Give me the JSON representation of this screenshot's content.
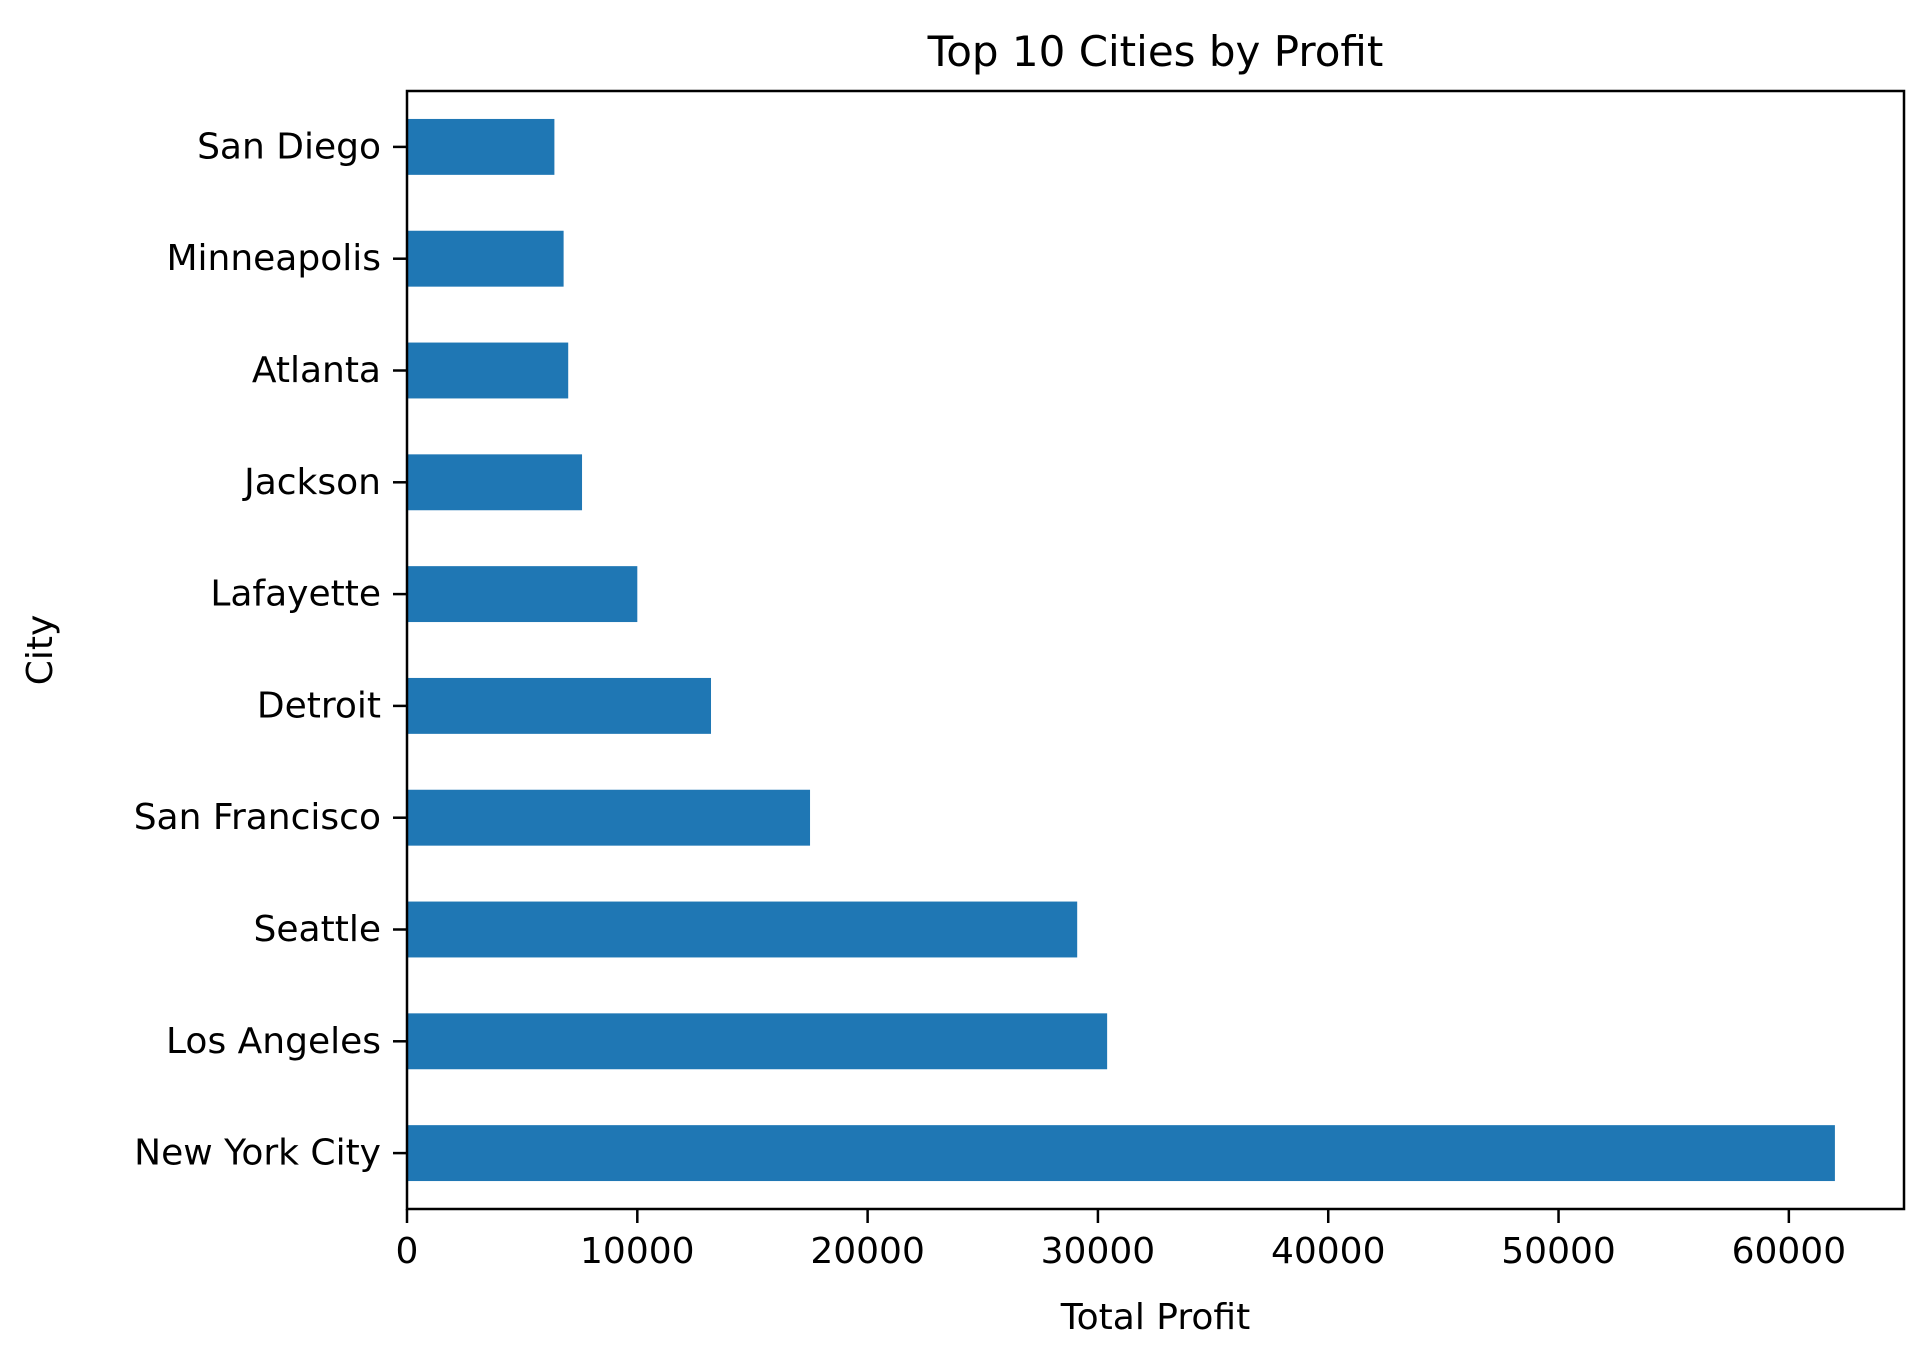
{
  "chart_data": {
    "type": "bar",
    "orientation": "horizontal",
    "title": "Top 10 Cities by Profit",
    "xlabel": "Total Profit",
    "ylabel": "City",
    "xlim": [
      0,
      65000
    ],
    "xticks": [
      0,
      10000,
      20000,
      30000,
      40000,
      50000,
      60000
    ],
    "grid": false,
    "categories": [
      "New York City",
      "Los Angeles",
      "Seattle",
      "San Francisco",
      "Detroit",
      "Lafayette",
      "Jackson",
      "Atlanta",
      "Minneapolis",
      "San Diego"
    ],
    "values": [
      62000,
      30400,
      29100,
      17500,
      13200,
      10000,
      7600,
      7000,
      6800,
      6400
    ],
    "bar_color": "#1f77b4"
  }
}
